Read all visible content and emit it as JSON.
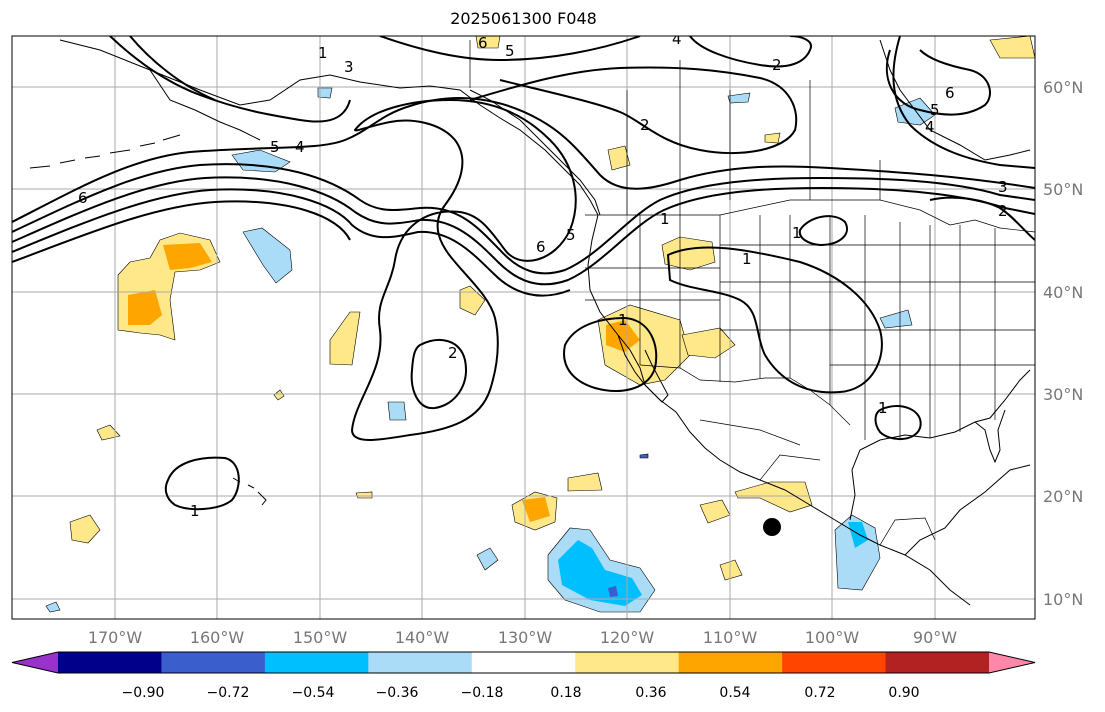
{
  "title": "2025061300 F048",
  "map": {
    "lon_labels": [
      "170°W",
      "160°W",
      "150°W",
      "140°W",
      "130°W",
      "120°W",
      "110°W",
      "100°W",
      "90°W"
    ],
    "lat_labels": [
      "60°N",
      "50°N",
      "40°N",
      "30°N",
      "20°N",
      "10°N"
    ],
    "contour_labels": [
      "1",
      "2",
      "3",
      "4",
      "5",
      "6"
    ],
    "marker": "station-dot"
  },
  "colorbar": {
    "ticks": [
      "−0.90",
      "−0.72",
      "−0.54",
      "−0.36",
      "−0.18",
      "0.18",
      "0.36",
      "0.54",
      "0.72",
      "0.90"
    ],
    "colors": [
      "#9932cc",
      "#00008b",
      "#3a5fcd",
      "#00bfff",
      "#aadcf8",
      "#ffffff",
      "#ffe88a",
      "#ffa500",
      "#ff4500",
      "#b22222",
      "#ff88aa"
    ]
  }
}
